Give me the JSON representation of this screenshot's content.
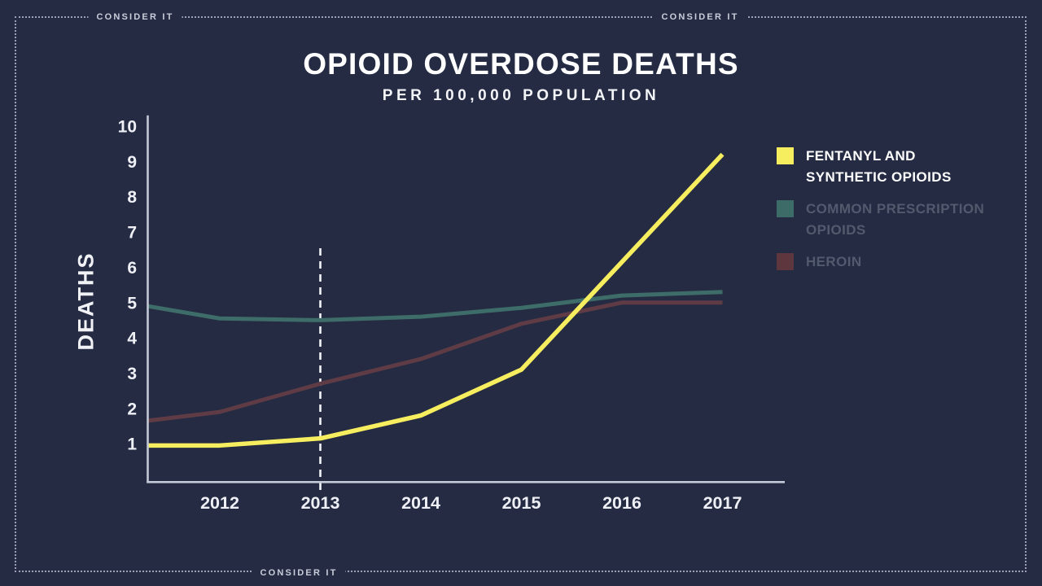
{
  "frame": {
    "brand_top_left": "CONSIDER IT",
    "brand_top_right": "CONSIDER IT",
    "brand_bottom": "CONSIDER IT"
  },
  "header": {
    "title": "OPIOID OVERDOSE DEATHS",
    "subtitle": "PER 100,000 POPULATION"
  },
  "legend": {
    "items": [
      {
        "label": "FENTANYL AND SYNTHETIC OPIOIDS",
        "color": "#f6ee5e",
        "text_color": "#ffffff"
      },
      {
        "label": "COMMON PRESCRIPTION OPIOIDS",
        "color": "#3d6b67",
        "text_color": "#525a6e"
      },
      {
        "label": "HEROIN",
        "color": "#5d363e",
        "text_color": "#525a6e"
      }
    ]
  },
  "chart_data": {
    "type": "line",
    "title": "OPIOID OVERDOSE DEATHS",
    "subtitle": "PER 100,000 POPULATION",
    "xlabel": "",
    "ylabel": "DEATHS",
    "x_tick_labels": [
      "2012",
      "2013",
      "2014",
      "2015",
      "2016",
      "2017"
    ],
    "x_tick_years": [
      2012,
      2013,
      2014,
      2015,
      2016,
      2017
    ],
    "y_ticks": [
      1,
      2,
      3,
      4,
      5,
      6,
      7,
      8,
      9,
      10
    ],
    "ylim": [
      0,
      10.3
    ],
    "xlim": [
      2011.28,
      2017.05
    ],
    "grid": false,
    "legend_position": "right",
    "annotation": {
      "type": "dashed-vline",
      "x": 2013
    },
    "x": [
      2011.28,
      2012,
      2013,
      2014,
      2015,
      2016,
      2017
    ],
    "series": [
      {
        "name": "FENTANYL AND SYNTHETIC OPIOIDS",
        "color": "#f6ee5e",
        "width": 5.5,
        "values": [
          0.95,
          0.95,
          1.15,
          1.8,
          3.1,
          6.15,
          9.2
        ]
      },
      {
        "name": "COMMON PRESCRIPTION OPIOIDS",
        "color": "#3e6c68",
        "width": 5,
        "values": [
          4.9,
          4.55,
          4.5,
          4.6,
          4.85,
          5.2,
          5.3
        ]
      },
      {
        "name": "HEROIN",
        "color": "#5f3c45",
        "width": 5,
        "values": [
          1.65,
          1.9,
          2.7,
          3.4,
          4.4,
          5.0,
          5.0
        ]
      }
    ],
    "axis_color": "#c3c9d6",
    "tick_text_color": "#eef0f5",
    "dashed_line_color": "#f2f4f8"
  }
}
